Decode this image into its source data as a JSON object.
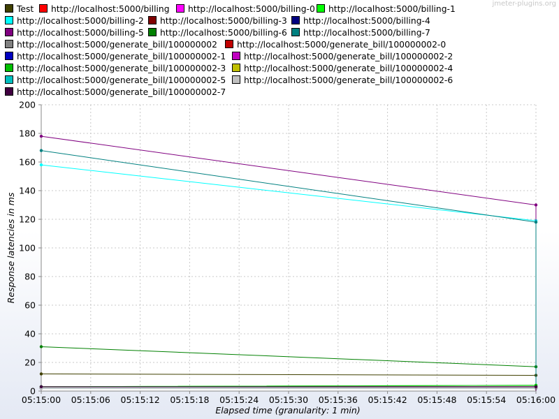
{
  "watermark": "jmeter-plugins.org",
  "chart_data": {
    "type": "line",
    "xlabel": "Elapsed time (granularity: 1 min)",
    "ylabel": "Response latencies in ms",
    "x_ticks": [
      "05:15:00",
      "05:15:06",
      "05:15:12",
      "05:15:18",
      "05:15:24",
      "05:15:30",
      "05:15:36",
      "05:15:42",
      "05:15:48",
      "05:15:54",
      "05:16:00"
    ],
    "x": [
      "05:15:00",
      "05:16:00"
    ],
    "ylim": [
      0,
      200
    ],
    "y_ticks": [
      0,
      20,
      40,
      60,
      80,
      100,
      120,
      140,
      160,
      180,
      200
    ],
    "grid": true,
    "legend_position": "top",
    "series": [
      {
        "name": "Test",
        "color": "#404000",
        "values": [
          12,
          11
        ]
      },
      {
        "name": "http://localhost:5000/billing",
        "color": "#ff0000",
        "values": [
          3,
          3
        ]
      },
      {
        "name": "http://localhost:5000/billing-0",
        "color": "#ff00ff",
        "values": [
          2,
          2
        ]
      },
      {
        "name": "http://localhost:5000/billing-1",
        "color": "#00ff00",
        "values": [
          3,
          4
        ]
      },
      {
        "name": "http://localhost:5000/billing-2",
        "color": "#00ffff",
        "values": [
          158,
          119
        ]
      },
      {
        "name": "http://localhost:5000/billing-3",
        "color": "#800000",
        "values": [
          3,
          3
        ]
      },
      {
        "name": "http://localhost:5000/billing-4",
        "color": "#000080",
        "values": [
          3,
          3
        ]
      },
      {
        "name": "http://localhost:5000/billing-5",
        "color": "#800080",
        "values": [
          178,
          130
        ]
      },
      {
        "name": "http://localhost:5000/billing-6",
        "color": "#008000",
        "values": [
          31,
          17
        ]
      },
      {
        "name": "http://localhost:5000/billing-7",
        "color": "#008080",
        "values": [
          168,
          118
        ]
      },
      {
        "name": "http://localhost:5000/generate_bill/100000002",
        "color": "#808080",
        "values": [
          2,
          2
        ]
      },
      {
        "name": "http://localhost:5000/generate_bill/100000002-0",
        "color": "#c00000",
        "values": [
          2,
          2
        ]
      },
      {
        "name": "http://localhost:5000/generate_bill/100000002-1",
        "color": "#0000c0",
        "values": [
          2,
          2
        ]
      },
      {
        "name": "http://localhost:5000/generate_bill/100000002-2",
        "color": "#c000c0",
        "values": [
          2,
          2
        ]
      },
      {
        "name": "http://localhost:5000/generate_bill/100000002-3",
        "color": "#00c000",
        "values": [
          3,
          4
        ]
      },
      {
        "name": "http://localhost:5000/generate_bill/100000002-4",
        "color": "#c0c000",
        "values": [
          2,
          2
        ]
      },
      {
        "name": "http://localhost:5000/generate_bill/100000002-5",
        "color": "#00c0c0",
        "values": [
          2,
          2
        ]
      },
      {
        "name": "http://localhost:5000/generate_bill/100000002-6",
        "color": "#c0c0c0",
        "values": [
          2,
          2
        ]
      },
      {
        "name": "http://localhost:5000/generate_bill/100000002-7",
        "color": "#400040",
        "values": [
          3,
          3
        ]
      }
    ]
  }
}
